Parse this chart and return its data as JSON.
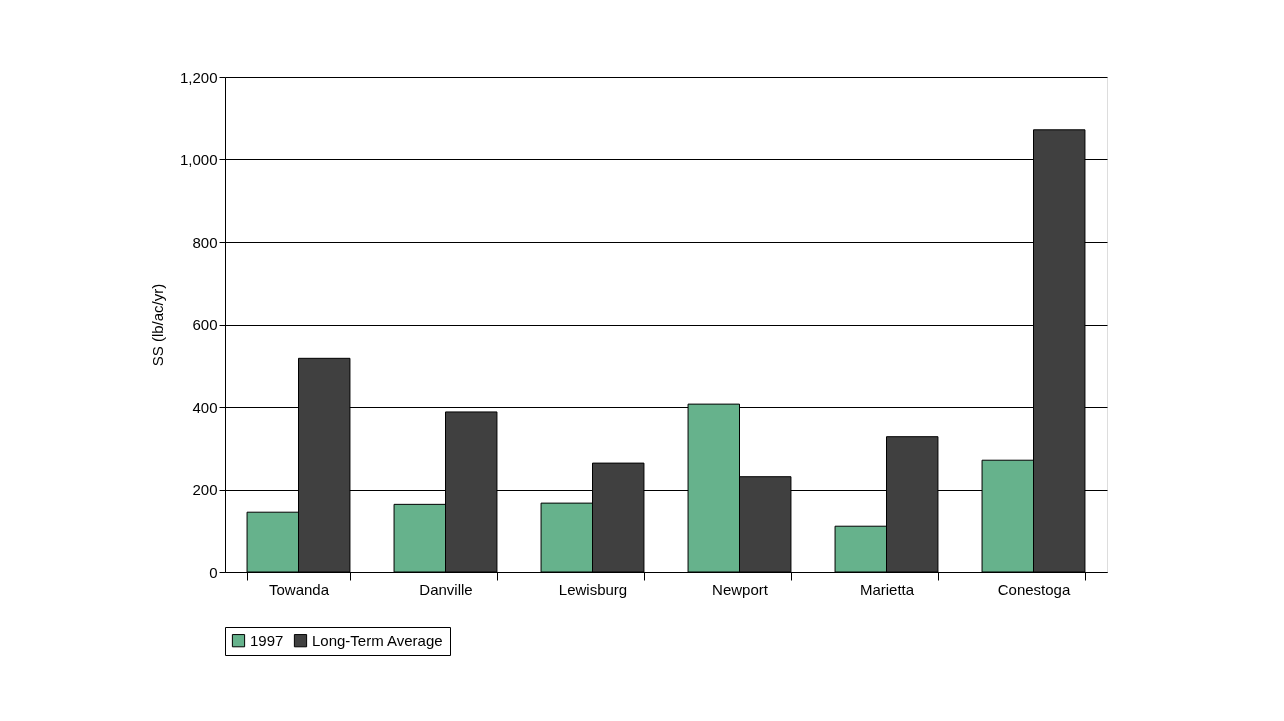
{
  "chart_data": {
    "type": "bar",
    "ylabel": "SS (lb/ac/yr)",
    "categories": [
      "Towanda",
      "Danville",
      "Lewisburg",
      "Newport",
      "Marietta",
      "Conestoga"
    ],
    "series": [
      {
        "name": "1997",
        "color": "#66b28c",
        "values": [
          145,
          164,
          167,
          407,
          111,
          271
        ]
      },
      {
        "name": "Long-Term Average",
        "color": "#404040",
        "values": [
          518,
          388,
          264,
          231,
          328,
          1072
        ]
      }
    ],
    "ylim": [
      0,
      1200
    ],
    "yticks": [
      0,
      200,
      400,
      600,
      800,
      {
        "value": 1000,
        "label": "1,000"
      },
      {
        "value": 1200,
        "label": "1,200"
      }
    ],
    "grid": "y",
    "legend": "bottom"
  }
}
